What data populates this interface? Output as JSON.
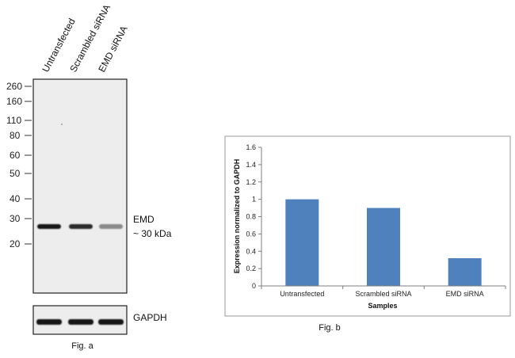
{
  "western_blot": {
    "lane_labels": [
      "Untransfected",
      "Scrambled siRNA",
      "EMD siRNA"
    ],
    "mw_markers": [
      "260",
      "160",
      "110",
      "80",
      "60",
      "50",
      "40",
      "30",
      "20"
    ],
    "band_label_line1": "EMD",
    "band_label_line2": "~ 30 kDa",
    "emd_band_intensity": [
      1.0,
      0.9,
      0.45
    ],
    "gapdh_label": "GAPDH",
    "gapdh_band_intensity": [
      1.0,
      1.0,
      1.0
    ],
    "caption": "Fig. a"
  },
  "chart_data": {
    "type": "bar",
    "categories": [
      "Untransfected",
      "Scrambled siRNA",
      "EMD siRNA"
    ],
    "values": [
      1.0,
      0.9,
      0.32
    ],
    "title": "",
    "xlabel": "Samples",
    "ylabel": "Expression normalized to GAPDH",
    "ylim": [
      0,
      1.6
    ],
    "yticks": [
      "0",
      "0.2",
      "0.4",
      "0.6",
      "0.8",
      "1",
      "1.2",
      "1.4",
      "1.6"
    ],
    "grid": false,
    "legend": "none",
    "bar_color": "#4f81bd",
    "caption": "Fig. b"
  }
}
